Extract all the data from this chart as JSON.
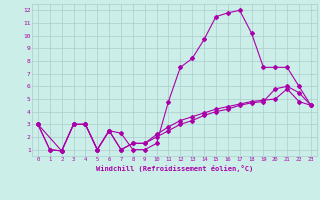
{
  "background_color": "#cceee8",
  "grid_color": "#aacccc",
  "line_color": "#aa00aa",
  "xlabel": "Windchill (Refroidissement éolien,°C)",
  "xlim": [
    -0.5,
    23.5
  ],
  "ylim": [
    0.5,
    12.5
  ],
  "xticks": [
    0,
    1,
    2,
    3,
    4,
    5,
    6,
    7,
    8,
    9,
    10,
    11,
    12,
    13,
    14,
    15,
    16,
    17,
    18,
    19,
    20,
    21,
    22,
    23
  ],
  "yticks": [
    1,
    2,
    3,
    4,
    5,
    6,
    7,
    8,
    9,
    10,
    11,
    12
  ],
  "line1_x": [
    0,
    1,
    2,
    3,
    4,
    5,
    6,
    7,
    8,
    9,
    10,
    11,
    12,
    13,
    14,
    15,
    16,
    17,
    18,
    19,
    20,
    21,
    22,
    23
  ],
  "line1_y": [
    3,
    1,
    0.9,
    3,
    3,
    1,
    2.5,
    2.3,
    1,
    1,
    1.5,
    4.8,
    7.5,
    8.2,
    9.7,
    11.5,
    11.8,
    12.0,
    10.2,
    7.5,
    7.5,
    7.5,
    6.0,
    4.5
  ],
  "line2_x": [
    0,
    1,
    2,
    3,
    4,
    5,
    6,
    7,
    8,
    9,
    10,
    11,
    12,
    13,
    14,
    15,
    16,
    17,
    18,
    19,
    20,
    21,
    22,
    23
  ],
  "line2_y": [
    3,
    1,
    0.9,
    3,
    3,
    1,
    2.5,
    1,
    1.5,
    1.5,
    2.0,
    2.5,
    3.0,
    3.3,
    3.7,
    4.0,
    4.2,
    4.5,
    4.7,
    4.8,
    5.8,
    6.0,
    5.5,
    4.5
  ],
  "line3_x": [
    0,
    2,
    3,
    4,
    5,
    6,
    7,
    8,
    9,
    10,
    11,
    12,
    13,
    14,
    15,
    16,
    17,
    18,
    19,
    20,
    21,
    22,
    23
  ],
  "line3_y": [
    3,
    0.9,
    3,
    3,
    1,
    2.5,
    1,
    1.5,
    1.5,
    2.2,
    2.8,
    3.3,
    3.6,
    3.9,
    4.2,
    4.4,
    4.6,
    4.8,
    4.9,
    5.0,
    5.8,
    4.8,
    4.5
  ]
}
